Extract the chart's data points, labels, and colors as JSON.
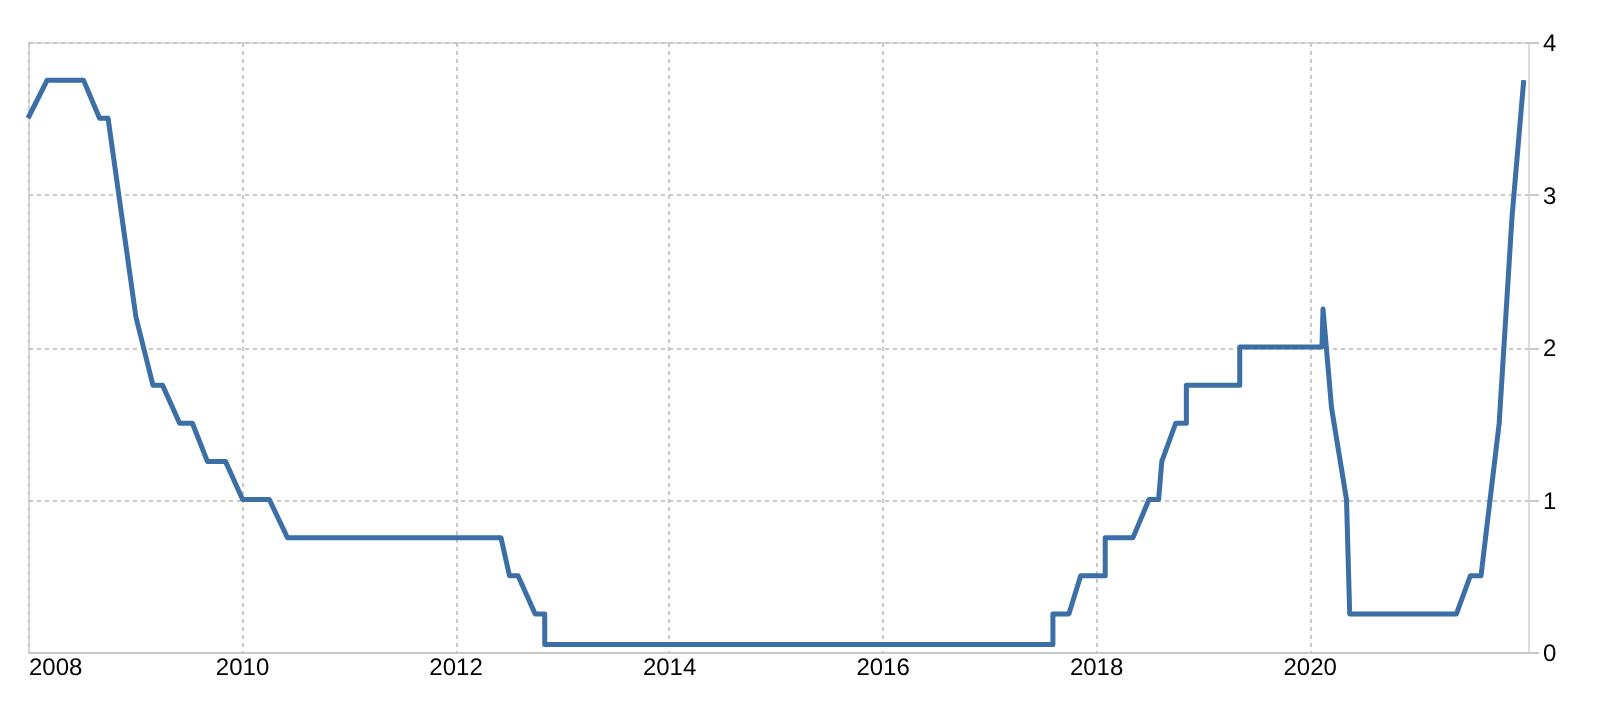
{
  "chart_data": {
    "type": "line",
    "x": [
      2008.0,
      2008.18,
      2008.52,
      2008.67,
      2008.75,
      2009.01,
      2009.17,
      2009.26,
      2009.42,
      2009.54,
      2009.68,
      2009.85,
      2010.01,
      2010.26,
      2010.43,
      2012.43,
      2012.51,
      2012.59,
      2012.75,
      2012.84,
      2012.84,
      2017.6,
      2017.6,
      2017.75,
      2017.86,
      2018.09,
      2018.09,
      2018.35,
      2018.5,
      2018.59,
      2018.62,
      2018.75,
      2018.85,
      2018.85,
      2019.35,
      2019.35,
      2020.12,
      2020.13,
      2020.21,
      2020.35,
      2020.38,
      2021.38,
      2021.51,
      2021.61,
      2021.78,
      2021.9,
      2022.01
    ],
    "series": [
      {
        "color": "#3b6fa5",
        "values": [
          3.5,
          3.75,
          3.75,
          3.5,
          3.5,
          2.2,
          1.75,
          1.75,
          1.5,
          1.5,
          1.25,
          1.25,
          1.0,
          1.0,
          0.75,
          0.75,
          0.5,
          0.5,
          0.25,
          0.25,
          0.05,
          0.05,
          0.25,
          0.25,
          0.5,
          0.5,
          0.75,
          0.75,
          1.0,
          1.0,
          1.25,
          1.5,
          1.5,
          1.75,
          1.75,
          2.0,
          2.0,
          2.25,
          1.6,
          1.0,
          0.25,
          0.25,
          0.5,
          0.5,
          1.5,
          2.85,
          3.75
        ]
      }
    ],
    "xlim": [
      2008,
      2022.05
    ],
    "xticks": [
      2008,
      2010,
      2012,
      2014,
      2016,
      2018,
      2020
    ],
    "ylim": [
      0,
      4
    ],
    "yticks": [
      0,
      1,
      2,
      3,
      4
    ],
    "grid": true,
    "marker": "none",
    "line_style": "solid"
  }
}
